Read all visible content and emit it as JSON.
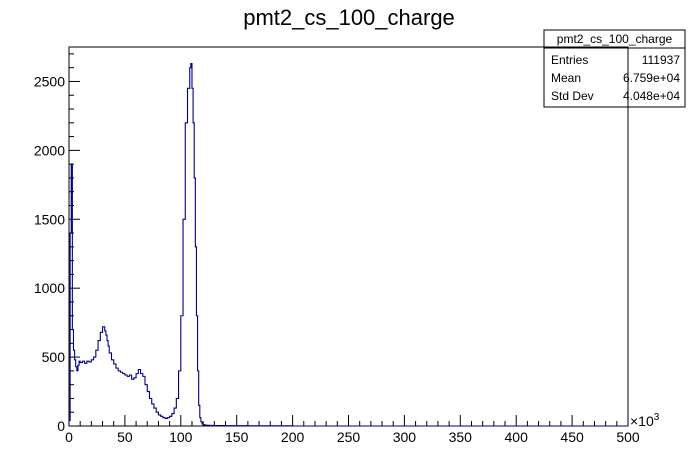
{
  "chart_data": {
    "type": "histogram",
    "title": "pmt2_cs_100_charge",
    "xlabel": "",
    "ylabel": "",
    "x_multiplier_label": "×10",
    "x_multiplier_exponent": "3",
    "xlim": [
      0,
      500
    ],
    "ylim": [
      0,
      2750
    ],
    "x_ticks": [
      "0",
      "50",
      "100",
      "150",
      "200",
      "250",
      "300",
      "350",
      "400",
      "450",
      "500"
    ],
    "y_ticks": [
      "0",
      "500",
      "1000",
      "1500",
      "2000",
      "2500"
    ],
    "line_color": "#000080",
    "stats_box": {
      "name": "pmt2_cs_100_charge",
      "rows": [
        {
          "label": "Entries",
          "value": "111937"
        },
        {
          "label": "Mean",
          "value": "6.759e+04"
        },
        {
          "label": "Std Dev",
          "value": "4.048e+04"
        }
      ]
    },
    "series": [
      {
        "x": [
          0,
          1,
          2,
          3,
          4,
          5,
          6,
          7,
          8,
          9,
          10,
          12,
          14,
          16,
          18,
          20,
          22,
          24,
          26,
          28,
          30,
          32,
          33,
          34,
          35,
          36,
          38,
          40,
          42,
          44,
          46,
          48,
          50,
          52,
          54,
          56,
          58,
          60,
          62,
          64,
          66,
          68,
          70,
          72,
          74,
          76,
          78,
          80,
          82,
          84,
          86,
          88,
          90,
          92,
          94,
          96,
          98,
          100,
          102,
          104,
          106,
          108,
          109,
          110,
          111,
          112,
          113,
          114,
          115,
          116,
          117,
          118,
          119,
          120,
          121,
          122,
          124,
          126,
          130,
          140,
          150,
          160,
          170,
          180,
          200,
          220,
          250,
          300,
          350,
          400,
          450,
          500
        ],
        "y": [
          40,
          1400,
          1900,
          700,
          550,
          480,
          430,
          400,
          440,
          470,
          460,
          470,
          455,
          470,
          465,
          480,
          500,
          550,
          620,
          680,
          720,
          690,
          660,
          620,
          580,
          530,
          480,
          450,
          420,
          400,
          390,
          380,
          370,
          360,
          370,
          340,
          350,
          380,
          410,
          380,
          360,
          300,
          250,
          200,
          160,
          130,
          100,
          80,
          70,
          60,
          55,
          60,
          70,
          90,
          130,
          200,
          400,
          800,
          1500,
          2200,
          2450,
          2600,
          2630,
          2450,
          2200,
          1800,
          1300,
          800,
          400,
          150,
          60,
          30,
          15,
          10,
          8,
          6,
          5,
          4,
          3,
          2,
          2,
          1,
          1,
          1,
          0,
          0,
          0,
          0,
          0,
          0,
          0,
          0
        ]
      }
    ]
  }
}
